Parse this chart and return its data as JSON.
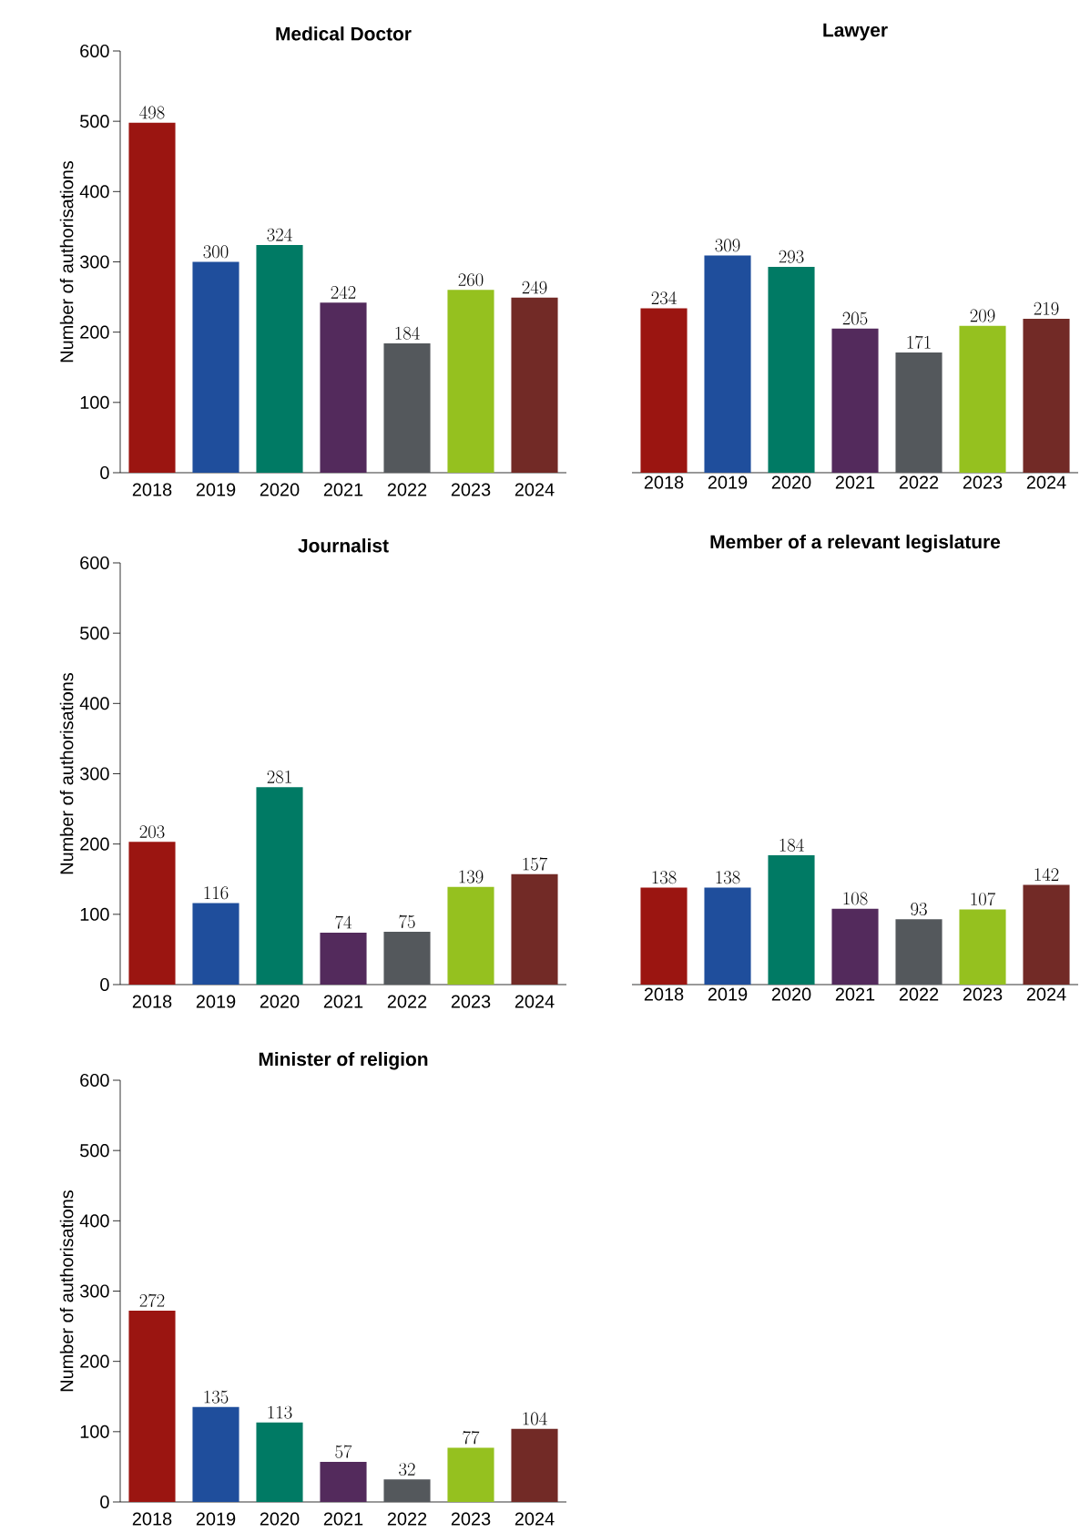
{
  "chart_data": [
    {
      "type": "bar",
      "title": "Medical Doctor",
      "ylabel": "Number of authorisations",
      "categories": [
        "2018",
        "2019",
        "2020",
        "2021",
        "2022",
        "2023",
        "2024"
      ],
      "values": [
        498,
        300,
        324,
        242,
        184,
        260,
        249
      ],
      "colors": [
        "#9b1511",
        "#1f4e9c",
        "#007a64",
        "#532a5c",
        "#54585c",
        "#95c11f",
        "#722a26"
      ],
      "ylim": [
        0,
        600
      ],
      "yticks": [
        0,
        100,
        200,
        300,
        400,
        500,
        600
      ],
      "data_labels": true
    },
    {
      "type": "bar",
      "title": "Lawyer",
      "categories": [
        "2018",
        "2019",
        "2020",
        "2021",
        "2022",
        "2023",
        "2024"
      ],
      "values": [
        234,
        309,
        293,
        205,
        171,
        209,
        219
      ],
      "colors": [
        "#9b1511",
        "#1f4e9c",
        "#007a64",
        "#532a5c",
        "#54585c",
        "#95c11f",
        "#722a26"
      ],
      "ylim": [
        0,
        600
      ],
      "tick_labels": "x",
      "data_labels": true
    },
    {
      "type": "bar",
      "title": "Journalist",
      "ylabel": "Number of authorisations",
      "categories": [
        "2018",
        "2019",
        "2020",
        "2021",
        "2022",
        "2023",
        "2024"
      ],
      "values": [
        203,
        116,
        281,
        74,
        75,
        139,
        157
      ],
      "colors": [
        "#9b1511",
        "#1f4e9c",
        "#007a64",
        "#532a5c",
        "#54585c",
        "#95c11f",
        "#722a26"
      ],
      "ylim": [
        0,
        600
      ],
      "yticks": [
        0,
        100,
        200,
        300,
        400,
        500,
        600
      ],
      "data_labels": true
    },
    {
      "type": "bar",
      "title": "Member of a relevant legislature",
      "categories": [
        "2018",
        "2019",
        "2020",
        "2021",
        "2022",
        "2023",
        "2024"
      ],
      "values": [
        138,
        138,
        184,
        108,
        93,
        107,
        142
      ],
      "colors": [
        "#9b1511",
        "#1f4e9c",
        "#007a64",
        "#532a5c",
        "#54585c",
        "#95c11f",
        "#722a26"
      ],
      "ylim": [
        0,
        600
      ],
      "tick_labels": "x",
      "data_labels": true
    },
    {
      "type": "bar",
      "title": "Minister of religion",
      "ylabel": "Number of authorisations",
      "categories": [
        "2018",
        "2019",
        "2020",
        "2021",
        "2022",
        "2023",
        "2024"
      ],
      "values": [
        272,
        135,
        113,
        57,
        32,
        77,
        104
      ],
      "colors": [
        "#9b1511",
        "#1f4e9c",
        "#007a64",
        "#532a5c",
        "#54585c",
        "#95c11f",
        "#722a26"
      ],
      "ylim": [
        0,
        600
      ],
      "yticks": [
        0,
        100,
        200,
        300,
        400,
        500,
        600
      ],
      "data_labels": true
    }
  ]
}
